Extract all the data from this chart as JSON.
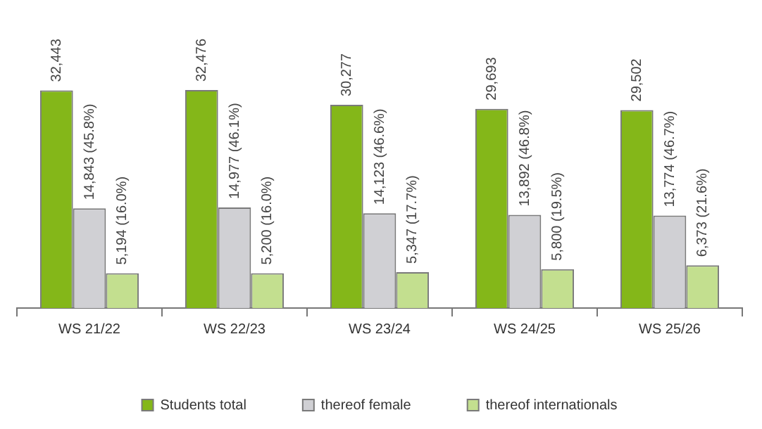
{
  "chart_data": {
    "type": "bar",
    "categories": [
      "WS 21/22",
      "WS 22/23",
      "WS 23/24",
      "WS 24/25",
      "WS 25/26"
    ],
    "series": [
      {
        "name": "Students total",
        "color": "#84b719",
        "values": [
          32443,
          32476,
          30277,
          29693,
          29502
        ],
        "value_labels": [
          "32,443",
          "32,476",
          "30,277",
          "29,693",
          "29,502"
        ]
      },
      {
        "name": "thereof female",
        "color": "#d0d0d4",
        "values": [
          14843,
          14977,
          14123,
          13892,
          13774
        ],
        "value_labels": [
          "14,843 (45.8%)",
          "14,977 (46.1%)",
          "14,123 (46.6%)",
          "13,892 (46.8%)",
          "13,774 (46.7%)"
        ]
      },
      {
        "name": "thereof internationals",
        "color": "#c3df8f",
        "values": [
          5194,
          5200,
          5347,
          5800,
          6373
        ],
        "value_labels": [
          "5,194 (16.0%)",
          "5,200 (16.0%)",
          "5,347 (17.7%)",
          "5,800 (19.5%)",
          "6,373 (21.6%)"
        ]
      }
    ],
    "legend": "bottom",
    "grid": false,
    "tick_labels": "x"
  }
}
